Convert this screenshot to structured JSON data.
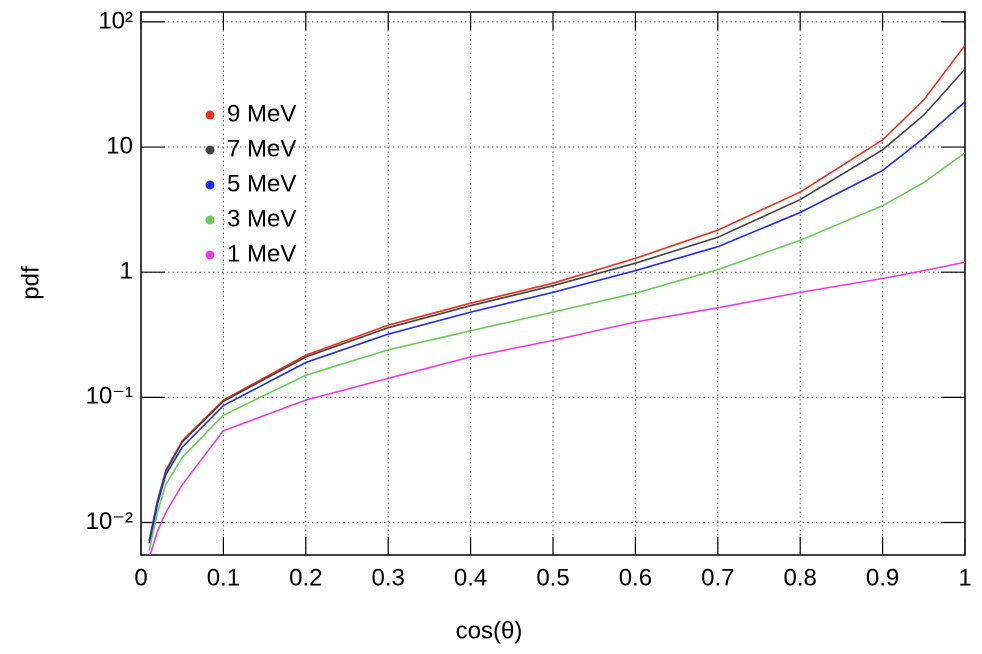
{
  "chart_data": {
    "type": "line",
    "x_label": "cos(θ)",
    "y_label": "pdf",
    "log_y": true,
    "grid": true,
    "legend": "upper left",
    "xlim": [
      0,
      1
    ],
    "ylim": [
      0.0055,
      120
    ],
    "xticks": [
      0,
      0.1,
      0.2,
      0.3,
      0.4,
      0.5,
      0.6,
      0.7,
      0.8,
      0.9,
      1
    ],
    "yticks": [
      {
        "value": 0.01,
        "label": "10⁻²"
      },
      {
        "value": 0.1,
        "label": "10⁻¹"
      },
      1,
      10,
      {
        "value": 100,
        "label": "10²"
      }
    ],
    "x": [
      0.01,
      0.02,
      0.03,
      0.05,
      0.1,
      0.2,
      0.3,
      0.4,
      0.5,
      0.6,
      0.7,
      0.8,
      0.9,
      0.95,
      1.0
    ],
    "series": [
      {
        "name": "9 MeV",
        "color": "#e8311f",
        "values": [
          0.0072,
          0.015,
          0.026,
          0.045,
          0.095,
          0.217,
          0.377,
          0.565,
          0.817,
          1.29,
          2.17,
          4.37,
          11.4,
          23.8,
          65
        ]
      },
      {
        "name": "7 MeV",
        "color": "#444444",
        "values": [
          0.0071,
          0.0148,
          0.0255,
          0.044,
          0.093,
          0.21,
          0.36,
          0.54,
          0.78,
          1.18,
          1.9,
          3.8,
          9.5,
          18,
          42
        ]
      },
      {
        "name": "5 MeV",
        "color": "#1a2ee8",
        "values": [
          0.0068,
          0.014,
          0.024,
          0.04,
          0.086,
          0.19,
          0.32,
          0.48,
          0.69,
          1.03,
          1.6,
          3.0,
          6.5,
          11.8,
          23
        ]
      },
      {
        "name": "3 MeV",
        "color": "#6ccc55",
        "values": [
          0.006,
          0.012,
          0.02,
          0.033,
          0.072,
          0.15,
          0.24,
          0.34,
          0.48,
          0.68,
          1.05,
          1.8,
          3.4,
          5.2,
          9
        ]
      },
      {
        "name": "1 MeV",
        "color": "#e83ee8",
        "values": [
          0.0052,
          0.0085,
          0.012,
          0.02,
          0.054,
          0.095,
          0.142,
          0.21,
          0.285,
          0.4,
          0.52,
          0.69,
          0.89,
          1.03,
          1.2
        ]
      }
    ]
  }
}
